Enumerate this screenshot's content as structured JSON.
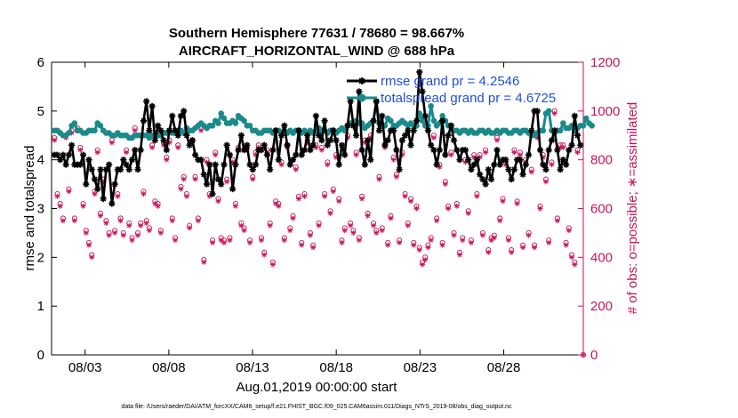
{
  "chart_data": {
    "type": "line",
    "title": "Southern Hemisphere 77631 / 78680 = 98.667%",
    "subtitle": "AIRCRAFT_HORIZONTAL_WIND @ 688 hPa",
    "xlabel": "Aug.01,2019 00:00:00 start",
    "ylabel": "rmse and totalspread",
    "ylabel_right": "# of obs: o=possible; ∗=assimilated",
    "footnote": "data file: /Users/raeder/DAI/ATM_forcXX/CAM6_setup/f.e21.FHIST_BGC.f09_025.CAM6assim.011/Diags_NTrS_2019-08/obs_diag_output.nc",
    "xlim": [
      0.0,
      31.75
    ],
    "ylim": [
      0,
      6
    ],
    "ylim_right": [
      0,
      1200
    ],
    "x_tick_labels": [
      "08/03",
      "08/08",
      "08/13",
      "08/18",
      "08/23",
      "08/28"
    ],
    "x_tick_values": [
      2,
      7,
      12,
      17,
      22,
      27
    ],
    "y_tick_labels": [
      "0",
      "1",
      "2",
      "3",
      "4",
      "5",
      "6"
    ],
    "y_tick_values": [
      0,
      1,
      2,
      3,
      4,
      5,
      6
    ],
    "y_right_tick_labels": [
      "0",
      "200",
      "400",
      "600",
      "800",
      "1000",
      "1200"
    ],
    "y_right_tick_values": [
      0,
      200,
      400,
      600,
      800,
      1000,
      1200
    ],
    "legend": [
      {
        "label": "rmse grand pr = 4.2546",
        "color": "#000000",
        "marker": "asterisk"
      },
      {
        "label": "totalspread grand pr = 4.6725",
        "color": "#1a8a8a",
        "marker": "circle"
      }
    ],
    "colors": {
      "rmse": "#000000",
      "spread": "#1a8a8a",
      "obs": "#c8135a"
    },
    "series": [
      {
        "name": "rmse",
        "values": [
          4.1,
          4.1,
          4.0,
          4.1,
          3.9,
          4.1,
          4.3,
          3.9,
          3.9,
          3.9,
          4.1,
          3.5,
          4.0,
          3.8,
          3.6,
          3.4,
          3.8,
          3.2,
          3.8,
          3.9,
          3.1,
          3.5,
          3.8,
          3.8,
          4.0,
          3.9,
          3.8,
          4.0,
          4.2,
          3.8,
          4.2,
          4.8,
          5.2,
          4.6,
          5.1,
          4.4,
          4.7,
          4.6,
          4.4,
          4.2,
          4.6,
          4.9,
          4.6,
          4.5,
          4.9,
          5.0,
          4.5,
          4.3,
          4.4,
          4.1,
          4.0,
          4.0,
          3.7,
          3.5,
          3.9,
          3.3,
          3.9,
          3.6,
          3.5,
          3.9,
          4.3,
          4.1,
          3.4,
          3.9,
          4.2,
          4.5,
          4.2,
          4.3,
          3.9,
          3.8,
          3.9,
          4.2,
          4.2,
          4.3,
          4.1,
          3.8,
          4.2,
          4.6,
          4.0,
          4.5,
          4.7,
          4.3,
          3.9,
          4.0,
          4.1,
          4.6,
          4.1,
          4.2,
          4.5,
          4.2,
          4.3,
          4.9,
          4.5,
          4.4,
          4.8,
          4.3,
          4.4,
          4.6,
          4.4,
          3.9,
          4.3,
          4.1,
          4.7,
          5.2,
          4.7,
          4.5,
          5.4,
          4.2,
          3.9,
          4.4,
          4.0,
          4.8,
          5.2,
          4.6,
          4.9,
          4.3,
          4.4,
          4.6,
          4.6,
          4.2,
          3.8,
          4.4,
          4.5,
          4.6,
          4.3,
          4.6,
          4.8,
          5.8,
          5.4,
          4.9,
          4.6,
          4.3,
          4.2,
          3.9,
          4.2,
          4.8,
          4.1,
          4.5,
          4.7,
          4.4,
          4.2,
          4.0,
          4.2,
          4.2,
          4.0,
          3.8,
          3.9,
          4.0,
          3.7,
          3.6,
          3.5,
          3.8,
          3.6,
          3.9,
          4.2,
          3.9,
          4.0,
          4.0,
          3.8,
          3.6,
          3.8,
          4.0,
          4.0,
          3.7,
          3.9,
          4.1,
          4.6,
          5.0,
          5.0,
          4.2,
          3.9,
          3.8,
          4.2,
          4.4,
          4.6,
          4.2,
          3.8,
          4.0,
          3.9,
          4.2,
          4.3,
          4.9,
          4.5,
          4.3
        ]
      },
      {
        "name": "totalspread",
        "values": [
          4.6,
          4.6,
          4.55,
          4.5,
          4.5,
          4.55,
          4.7,
          4.75,
          4.6,
          4.6,
          4.55,
          4.55,
          4.6,
          4.6,
          4.6,
          4.75,
          4.7,
          4.6,
          4.55,
          4.55,
          4.5,
          4.5,
          4.55,
          4.5,
          4.5,
          4.5,
          4.45,
          4.45,
          4.5,
          4.5,
          4.5,
          4.5,
          4.5,
          4.45,
          4.5,
          4.5,
          4.5,
          4.5,
          4.55,
          4.55,
          4.6,
          4.55,
          4.55,
          4.6,
          4.6,
          4.55,
          4.65,
          4.6,
          4.6,
          4.65,
          4.7,
          4.75,
          4.7,
          4.65,
          4.7,
          4.7,
          4.8,
          4.75,
          4.95,
          4.85,
          4.75,
          4.75,
          4.8,
          4.75,
          4.9,
          4.85,
          4.8,
          4.7,
          4.7,
          4.6,
          4.6,
          4.55,
          4.55,
          4.6,
          4.6,
          4.6,
          4.55,
          4.6,
          4.6,
          4.55,
          4.6,
          4.55,
          4.6,
          4.55,
          4.6,
          4.6,
          4.55,
          4.6,
          4.55,
          4.6,
          4.55,
          4.6,
          4.65,
          4.6,
          4.6,
          4.55,
          4.6,
          4.6,
          4.55,
          4.6,
          4.65,
          4.6,
          4.7,
          4.75,
          4.75,
          4.8,
          4.75,
          4.75,
          4.65,
          4.7,
          4.75,
          4.8,
          5.2,
          4.75,
          4.7,
          4.7,
          4.85,
          4.8,
          4.7,
          4.7,
          4.75,
          4.8,
          4.75,
          4.7,
          4.75,
          4.7,
          4.7,
          4.95,
          4.8,
          4.7,
          4.7,
          5.1,
          4.8,
          4.7,
          4.75,
          4.9,
          4.8,
          4.7,
          4.7,
          4.6,
          4.6,
          4.55,
          4.6,
          4.6,
          4.55,
          4.6,
          4.55,
          4.55,
          4.6,
          4.6,
          4.55,
          4.6,
          4.55,
          4.55,
          4.6,
          4.55,
          4.6,
          4.6,
          4.55,
          4.55,
          4.6,
          4.6,
          4.55,
          4.6,
          4.6,
          4.55,
          4.5,
          4.5,
          4.55,
          4.6,
          4.6,
          4.95,
          5.0,
          4.6,
          4.55,
          4.6,
          4.6,
          4.75,
          4.65,
          4.65,
          4.7,
          4.6,
          4.65,
          4.7,
          4.7,
          4.85,
          4.75,
          4.7
        ]
      },
      {
        "name": "obs_possible",
        "values": [
          890,
          660,
          620,
          560,
          900,
          680,
          920,
          560,
          930,
          850,
          620,
          510,
          460,
          410,
          670,
          840,
          580,
          720,
          550,
          500,
          880,
          510,
          660,
          560,
          500,
          840,
          540,
          480,
          930,
          500,
          540,
          670,
          550,
          520,
          860,
          630,
          620,
          510,
          870,
          810,
          880,
          560,
          480,
          860,
          690,
          730,
          660,
          530,
          880,
          730,
          560,
          930,
          390,
          800,
          660,
          470,
          830,
          640,
          480,
          470,
          720,
          480,
          800,
          620,
          850,
          540,
          520,
          850,
          470,
          730,
          830,
          860,
          480,
          420,
          840,
          540,
          380,
          630,
          620,
          790,
          480,
          860,
          520,
          570,
          770,
          650,
          460,
          660,
          880,
          500,
          450,
          860,
          540,
          850,
          660,
          790,
          590,
          680,
          820,
          640,
          470,
          520,
          900,
          540,
          510,
          830,
          480,
          650,
          880,
          580,
          900,
          540,
          510,
          730,
          520,
          860,
          460,
          570,
          810,
          740,
          470,
          830,
          660,
          540,
          640,
          460,
          610,
          440,
          380,
          400,
          450,
          480,
          900,
          560,
          780,
          460,
          710,
          610,
          830,
          500,
          620,
          420,
          480,
          800,
          590,
          470,
          820,
          660,
          820,
          500,
          840,
          430,
          480,
          490,
          890,
          560,
          640,
          790,
          480,
          430,
          840,
          630,
          830,
          450,
          800,
          500,
          760,
          450,
          900,
          610,
          820,
          720,
          470,
          790,
          1000,
          560,
          860,
          860,
          460,
          520,
          410,
          380,
          840
        ]
      },
      {
        "name": "obs_assimilated",
        "values": [
          880,
          650,
          610,
          550,
          890,
          670,
          910,
          550,
          920,
          840,
          610,
          500,
          450,
          400,
          660,
          830,
          570,
          710,
          540,
          490,
          870,
          500,
          650,
          550,
          490,
          830,
          530,
          470,
          920,
          490,
          530,
          660,
          540,
          510,
          850,
          620,
          610,
          500,
          860,
          800,
          870,
          550,
          470,
          850,
          680,
          720,
          650,
          520,
          870,
          720,
          550,
          920,
          380,
          790,
          650,
          460,
          820,
          630,
          470,
          460,
          710,
          470,
          790,
          610,
          840,
          530,
          510,
          840,
          460,
          720,
          820,
          850,
          470,
          410,
          830,
          530,
          370,
          620,
          610,
          780,
          470,
          850,
          510,
          560,
          760,
          640,
          450,
          650,
          870,
          490,
          440,
          850,
          530,
          840,
          650,
          780,
          580,
          670,
          810,
          630,
          460,
          510,
          890,
          530,
          500,
          820,
          470,
          640,
          870,
          570,
          890,
          530,
          500,
          720,
          510,
          850,
          450,
          560,
          800,
          730,
          460,
          820,
          650,
          530,
          630,
          450,
          600,
          430,
          370,
          390,
          440,
          470,
          890,
          550,
          770,
          450,
          700,
          600,
          820,
          490,
          610,
          410,
          470,
          790,
          580,
          460,
          810,
          650,
          810,
          490,
          830,
          420,
          470,
          480,
          880,
          550,
          630,
          780,
          470,
          420,
          830,
          620,
          820,
          440,
          790,
          490,
          750,
          440,
          890,
          600,
          810,
          710,
          460,
          780,
          990,
          550,
          850,
          850,
          450,
          510,
          400,
          370,
          830
        ]
      }
    ]
  }
}
